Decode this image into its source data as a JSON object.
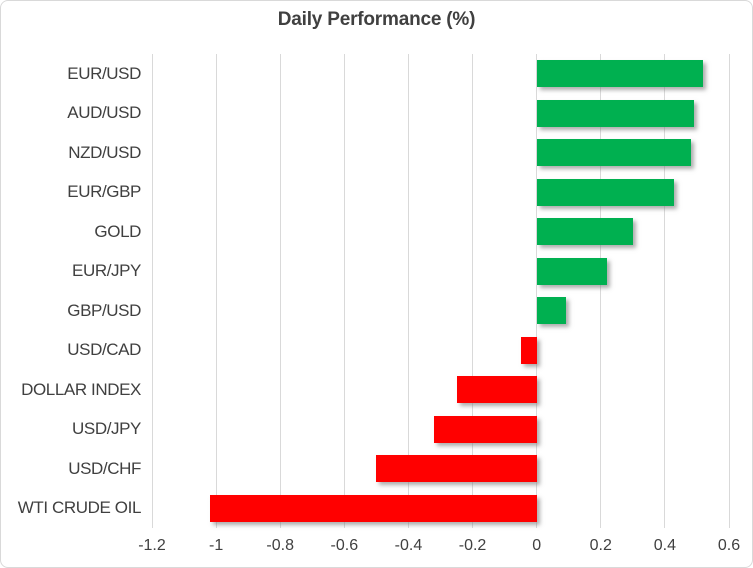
{
  "chart_data": {
    "type": "bar",
    "orientation": "horizontal",
    "title": "Daily Performance (%)",
    "categories": [
      "EUR/USD",
      "AUD/USD",
      "NZD/USD",
      "EUR/GBP",
      "GOLD",
      "EUR/JPY",
      "GBP/USD",
      "USD/CAD",
      "DOLLAR INDEX",
      "USD/JPY",
      "USD/CHF",
      "WTI CRUDE OIL"
    ],
    "values": [
      0.52,
      0.49,
      0.48,
      0.43,
      0.3,
      0.22,
      0.09,
      -0.05,
      -0.25,
      -0.32,
      -0.5,
      -1.02
    ],
    "xlabel": "",
    "ylabel": "",
    "xlim": [
      -1.2,
      0.6
    ],
    "xtick_labels": [
      "-1.2",
      "-1",
      "-0.8",
      "-0.6",
      "-0.4",
      "-0.2",
      "0",
      "0.2",
      "0.4",
      "0.6"
    ],
    "xtick_values": [
      -1.2,
      -1.0,
      -0.8,
      -0.6,
      -0.4,
      -0.2,
      0,
      0.2,
      0.4,
      0.6
    ],
    "grid": "vertical-gridlines-on",
    "legend": "none",
    "colors": {
      "positive_bar": "#00B050",
      "negative_bar": "#FF0000",
      "gridline": "#D9D9D9",
      "text": "#404040",
      "frame_border": "#D9D9D9",
      "background": "#FFFFFF"
    }
  }
}
